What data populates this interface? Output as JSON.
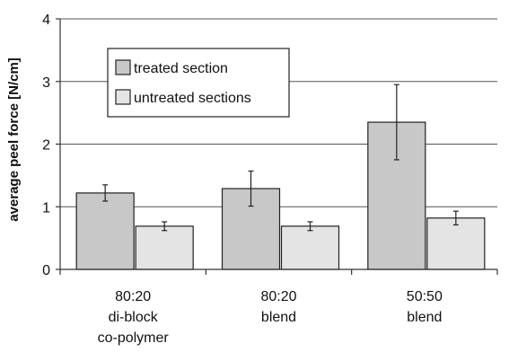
{
  "chart_data": {
    "type": "bar",
    "categories": [
      [
        "80:20",
        "di-block",
        "co-polymer"
      ],
      [
        "80:20",
        "blend"
      ],
      [
        "50:50",
        "blend"
      ]
    ],
    "series": [
      {
        "name": "treated section",
        "values": [
          1.22,
          1.29,
          2.35
        ],
        "errors": [
          0.13,
          0.28,
          0.6
        ],
        "color": "#c8c8c8"
      },
      {
        "name": "untreated sections",
        "values": [
          0.69,
          0.69,
          0.82
        ],
        "errors": [
          0.07,
          0.07,
          0.11
        ],
        "color": "#e4e4e4"
      }
    ],
    "title": "",
    "xlabel": "",
    "ylabel": "average peel force [N/cm]",
    "ylim": [
      0,
      4
    ],
    "yticks": [
      0,
      1,
      2,
      3,
      4
    ],
    "grid": true,
    "legend_position": "top-left"
  }
}
